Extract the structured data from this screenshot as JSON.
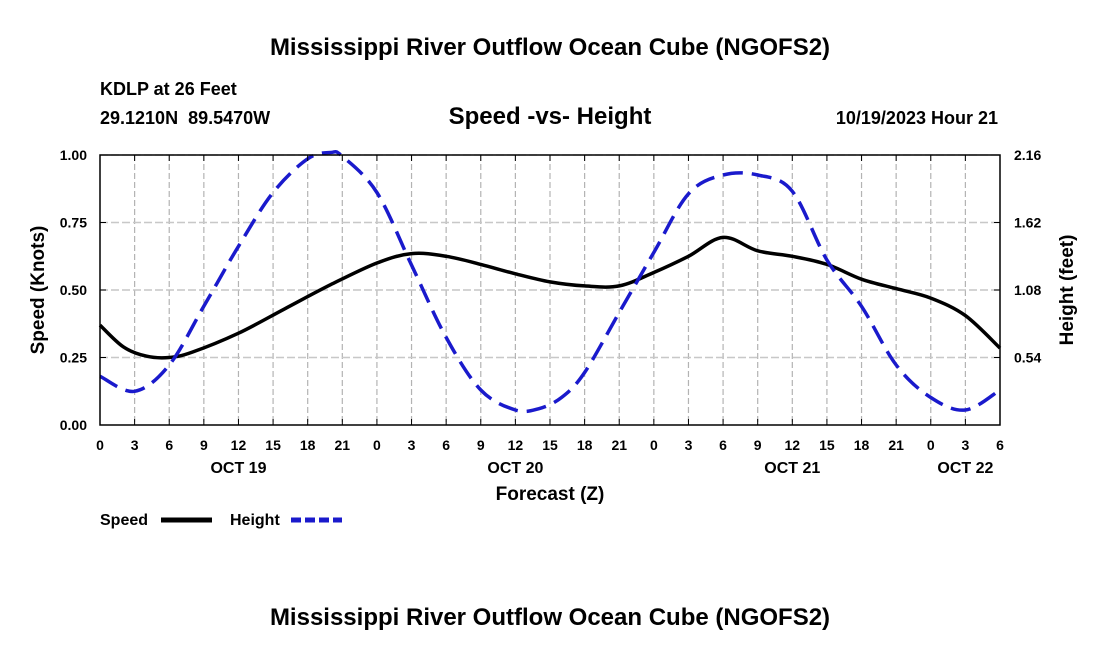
{
  "page": {
    "title": "Mississippi River Outflow Ocean Cube (NGOFS2)",
    "footer_title": "Mississippi River Outflow Ocean Cube (NGOFS2)"
  },
  "station": {
    "name_line": "KDLP at 26 Feet",
    "coords_line": "29.1210N  89.5470W"
  },
  "chart_data": {
    "type": "line",
    "title": "Speed -vs- Height",
    "date_label": "10/19/2023 Hour 21",
    "xlabel": "Forecast (Z)",
    "ylabel": "Speed (Knots)",
    "y2label": "Height (feet)",
    "xlim": [
      0,
      78
    ],
    "ylim": [
      0,
      1.0
    ],
    "y2lim": [
      0,
      2.16
    ],
    "yticks": [
      "0.00",
      "0.25",
      "0.50",
      "0.75",
      "1.00"
    ],
    "y2ticks": [
      "0.54",
      "1.08",
      "1.62",
      "2.16"
    ],
    "xtick_labels": [
      "0",
      "3",
      "6",
      "9",
      "12",
      "15",
      "18",
      "21",
      "0",
      "3",
      "6",
      "9",
      "12",
      "15",
      "18",
      "21",
      "0",
      "3",
      "6",
      "9",
      "12",
      "15",
      "18",
      "21",
      "0",
      "3",
      "6"
    ],
    "day_labels": [
      {
        "label": "OCT 19",
        "hour": 12
      },
      {
        "label": "OCT 20",
        "hour": 36
      },
      {
        "label": "OCT 21",
        "hour": 60
      },
      {
        "label": "OCT 22",
        "hour": 75
      }
    ],
    "series": [
      {
        "name": "Speed",
        "axis": "left",
        "color": "#000000",
        "style": "solid",
        "x": [
          0,
          2,
          4,
          6,
          8,
          12,
          16,
          20,
          24,
          27,
          30,
          33,
          36,
          39,
          42,
          45,
          48,
          51,
          54,
          57,
          60,
          63,
          66,
          69,
          72,
          75,
          78
        ],
        "y": [
          0.37,
          0.29,
          0.255,
          0.25,
          0.27,
          0.34,
          0.43,
          0.52,
          0.6,
          0.635,
          0.625,
          0.595,
          0.56,
          0.53,
          0.515,
          0.515,
          0.565,
          0.625,
          0.695,
          0.645,
          0.625,
          0.595,
          0.54,
          0.505,
          0.47,
          0.405,
          0.285
        ]
      },
      {
        "name": "Height",
        "axis": "right",
        "color": "#1a1acc",
        "style": "dashed",
        "x": [
          0,
          3,
          6,
          9,
          12,
          15,
          18,
          20,
          21,
          24,
          27,
          30,
          33,
          36,
          38,
          40,
          42,
          45,
          48,
          51,
          54,
          57,
          60,
          63,
          66,
          69,
          72,
          75,
          78
        ],
        "y": [
          0.39,
          0.27,
          0.48,
          0.95,
          1.43,
          1.86,
          2.13,
          2.18,
          2.15,
          1.86,
          1.28,
          0.7,
          0.28,
          0.12,
          0.13,
          0.22,
          0.42,
          0.9,
          1.38,
          1.85,
          2.0,
          2.0,
          1.87,
          1.32,
          0.95,
          0.48,
          0.22,
          0.12,
          0.28
        ]
      }
    ],
    "legend": {
      "speed_label": "Speed",
      "height_label": "Height",
      "placement": "bottom-left"
    }
  }
}
